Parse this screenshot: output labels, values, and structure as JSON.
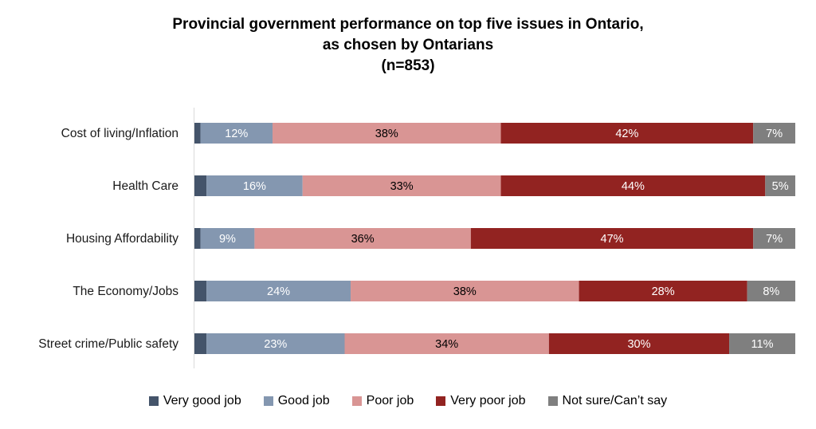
{
  "chart_data": {
    "type": "bar",
    "orientation": "horizontal",
    "stacked": true,
    "title_lines": [
      "Provincial government performance on top five issues in Ontario,",
      "as chosen by Ontarians",
      "(n=853)"
    ],
    "xlabel": "",
    "ylabel": "",
    "xlim": [
      0,
      100
    ],
    "grid": false,
    "legend_position": "bottom",
    "categories": [
      "Cost of living/Inflation",
      "Health Care",
      "Housing Affordability",
      "The Economy/Jobs",
      "Street crime/Public safety"
    ],
    "series": [
      {
        "name": "Very good job",
        "color": "#44546a",
        "values": [
          1,
          2,
          1,
          2,
          2
        ],
        "labels": [
          "",
          "",
          "",
          "",
          ""
        ],
        "label_color": "#ffffff"
      },
      {
        "name": "Good job",
        "color": "#8497b0",
        "values": [
          12,
          16,
          9,
          24,
          23
        ],
        "labels": [
          "12%",
          "16%",
          "9%",
          "24%",
          "23%"
        ],
        "label_color": "#ffffff"
      },
      {
        "name": "Poor job",
        "color": "#d99594",
        "values": [
          38,
          33,
          36,
          38,
          34
        ],
        "labels": [
          "38%",
          "33%",
          "36%",
          "38%",
          "34%"
        ],
        "label_color": "#000000"
      },
      {
        "name": "Very poor job",
        "color": "#922321",
        "values": [
          42,
          44,
          47,
          28,
          30
        ],
        "labels": [
          "42%",
          "44%",
          "47%",
          "28%",
          "30%"
        ],
        "label_color": "#ffffff"
      },
      {
        "name": "Not sure/Can’t say",
        "color": "#7f7f7f",
        "values": [
          7,
          5,
          7,
          8,
          11
        ],
        "labels": [
          "7%",
          "5%",
          "7%",
          "8%",
          "11%"
        ],
        "label_color": "#ffffff"
      }
    ]
  }
}
